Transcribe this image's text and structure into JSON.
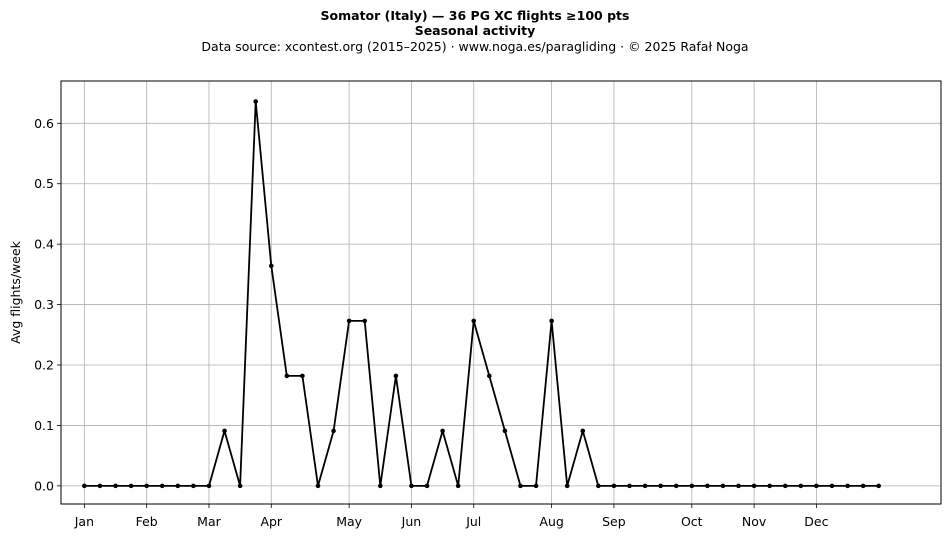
{
  "chart_data": {
    "type": "line",
    "title": "Somator (Italy)  —  36 PG XC flights ≥100 pts",
    "subtitle": "Seasonal activity",
    "source": "Data source: xcontest.org (2015–2025)  ·  www.noga.es/paragliding  ·  © 2025 Rafał Noga",
    "xlabel": "",
    "ylabel": "Avg flights/week",
    "x_tick_labels": [
      "Jan",
      "Feb",
      "Mar",
      "Apr",
      "May",
      "Jun",
      "Jul",
      "Aug",
      "Sep",
      "Oct",
      "Nov",
      "Dec"
    ],
    "x_tick_weeks": [
      1,
      5,
      9,
      13,
      18,
      22,
      26,
      31,
      35,
      40,
      44,
      48
    ],
    "ylim": [
      -0.03,
      0.67
    ],
    "yticks": [
      0.0,
      0.1,
      0.2,
      0.3,
      0.4,
      0.5,
      0.6
    ],
    "xlim": [
      -0.5,
      56
    ],
    "grid": true,
    "line_color": "#000000",
    "series": [
      {
        "x": [
          1,
          2,
          3,
          4,
          5,
          6,
          7,
          8,
          9,
          10,
          11,
          12,
          13,
          14,
          15,
          16,
          17,
          18,
          19,
          20,
          21,
          22,
          23,
          24,
          25,
          26,
          27,
          28,
          29,
          30,
          31,
          32,
          33,
          34,
          35,
          36,
          37,
          38,
          39,
          40,
          41,
          42,
          43,
          44,
          45,
          46,
          47,
          48,
          49,
          50,
          51,
          52
        ],
        "values": [
          0,
          0,
          0,
          0,
          0,
          0,
          0,
          0,
          0,
          0.091,
          0,
          0.636,
          0.364,
          0.182,
          0.182,
          0,
          0.091,
          0.273,
          0.273,
          0,
          0.182,
          0,
          0,
          0.091,
          0,
          0.273,
          0.182,
          0.091,
          0,
          0,
          0.273,
          0,
          0.091,
          0,
          0,
          0,
          0,
          0,
          0,
          0,
          0,
          0,
          0,
          0,
          0,
          0,
          0,
          0,
          0,
          0,
          0,
          0
        ]
      }
    ]
  }
}
